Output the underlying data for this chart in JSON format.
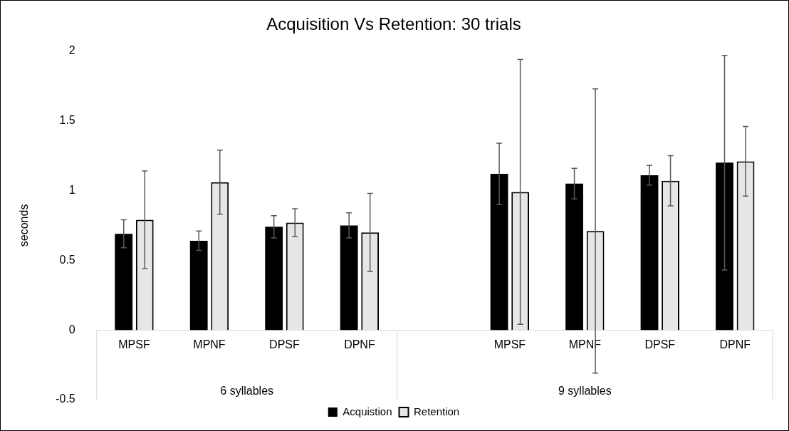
{
  "chart_data": {
    "type": "bar",
    "title": "Acquisition Vs Retention: 30 trials",
    "ylabel": "seconds",
    "categories": [
      "MPSF",
      "MPNF",
      "DPSF",
      "DPNF",
      null,
      "MPSF",
      "MPNF",
      "DPSF",
      "DPNF"
    ],
    "series": [
      {
        "name": "Acquistion",
        "color": "#000000",
        "values": [
          0.69,
          0.64,
          0.74,
          0.75,
          null,
          1.12,
          1.05,
          1.11,
          1.2
        ],
        "errors": [
          0.1,
          0.07,
          0.08,
          0.09,
          null,
          0.22,
          0.11,
          0.07,
          0.77
        ]
      },
      {
        "name": "Retention",
        "color": "#e7e6e6",
        "values": [
          0.79,
          1.06,
          0.77,
          0.7,
          null,
          0.99,
          0.71,
          1.07,
          1.21
        ],
        "errors": [
          0.35,
          0.23,
          0.1,
          0.28,
          null,
          0.95,
          1.02,
          0.18,
          0.25
        ]
      }
    ],
    "annotations": [
      "6 syllables",
      "9 syllables"
    ],
    "ylim": [
      -0.5,
      2
    ],
    "yticks": [
      -0.5,
      0,
      0.5,
      1,
      1.5,
      2
    ],
    "grid": false,
    "legend": "bottom"
  }
}
